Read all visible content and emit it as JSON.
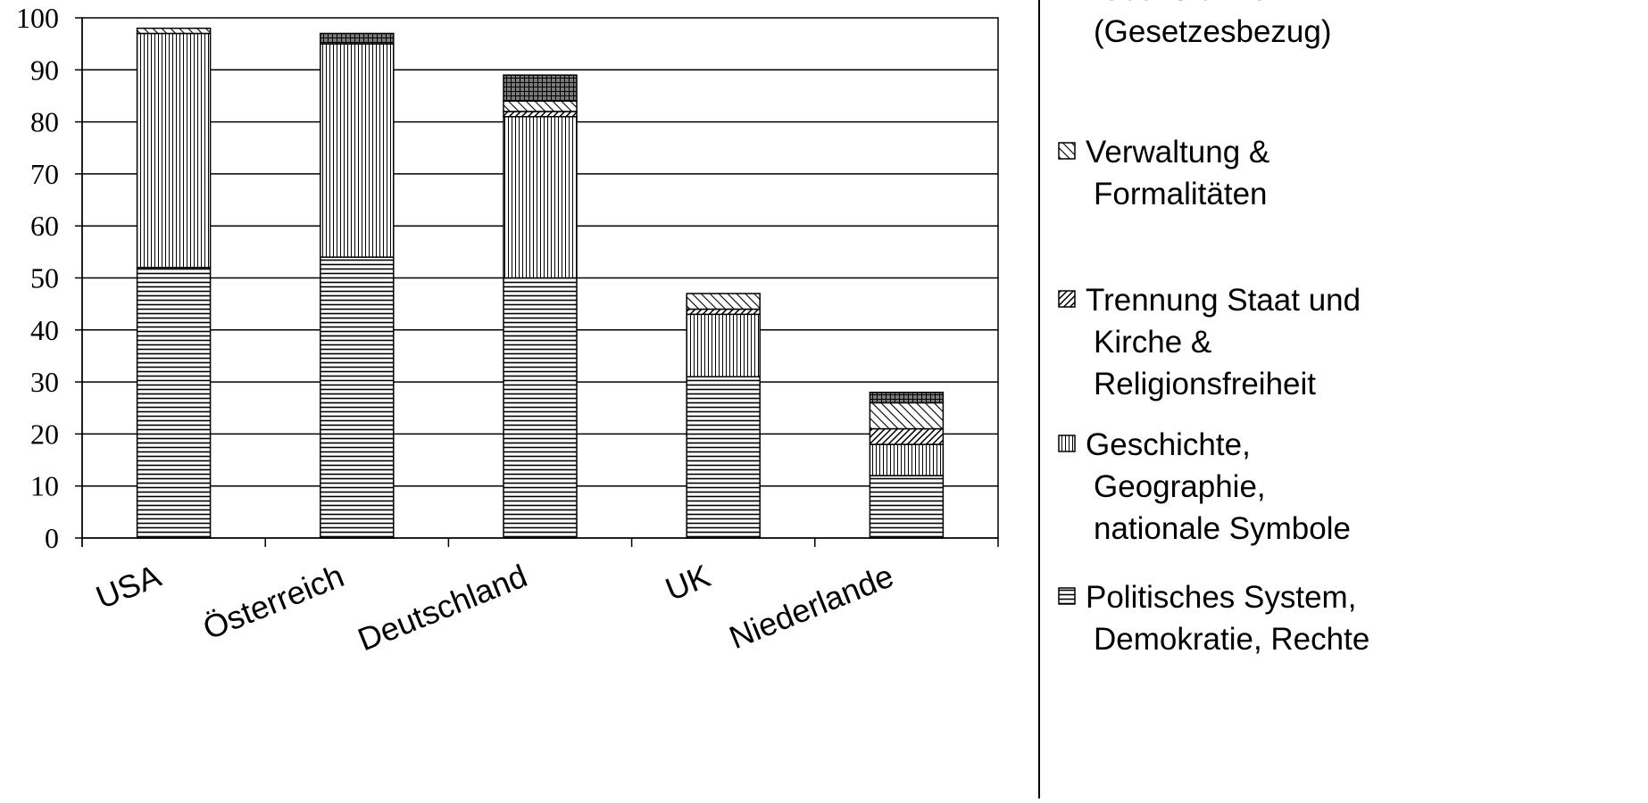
{
  "chart_data": {
    "type": "bar",
    "stacked": true,
    "categories": [
      "USA",
      "Österreich",
      "Deutschland",
      "UK",
      "Niederlande"
    ],
    "ylim": [
      0,
      100
    ],
    "yticks": [
      "0",
      "10",
      "20",
      "30",
      "40",
      "50",
      "60",
      "70",
      "80",
      "90",
      "100"
    ],
    "grid": "horizontal",
    "legend_position": "right",
    "series": [
      {
        "name": "Politisches System, Demokratie, Rechte",
        "pattern": "horizontal-lines",
        "values": [
          52,
          54,
          50,
          31,
          12
        ]
      },
      {
        "name": "Geschichte, Geographie, nationale Symbole",
        "pattern": "vertical-lines",
        "values": [
          45,
          41,
          31,
          12,
          6
        ]
      },
      {
        "name": "Trennung Staat und Kirche & Religionsfreiheit",
        "pattern": "dense-diagonal",
        "values": [
          0,
          0,
          1,
          1,
          3
        ]
      },
      {
        "name": "Verwaltung & Formalitäten",
        "pattern": "diagonal",
        "values": [
          1,
          0,
          2,
          3,
          5
        ]
      },
      {
        "name": "Lebensformen (Gesetzesbezug)",
        "pattern": "grid",
        "values": [
          0,
          2,
          5,
          0,
          2
        ]
      }
    ],
    "legend_lines": [
      [
        "Lebensformen",
        "(Gesetzesbezug)"
      ],
      [
        "Verwaltung &",
        "Formalitäten"
      ],
      [
        "Trennung Staat und",
        "Kirche &",
        "Religionsfreiheit"
      ],
      [
        "Geschichte,",
        "Geographie,",
        "nationale Symbole"
      ],
      [
        "Politisches System,",
        "Demokratie, Rechte"
      ]
    ]
  }
}
